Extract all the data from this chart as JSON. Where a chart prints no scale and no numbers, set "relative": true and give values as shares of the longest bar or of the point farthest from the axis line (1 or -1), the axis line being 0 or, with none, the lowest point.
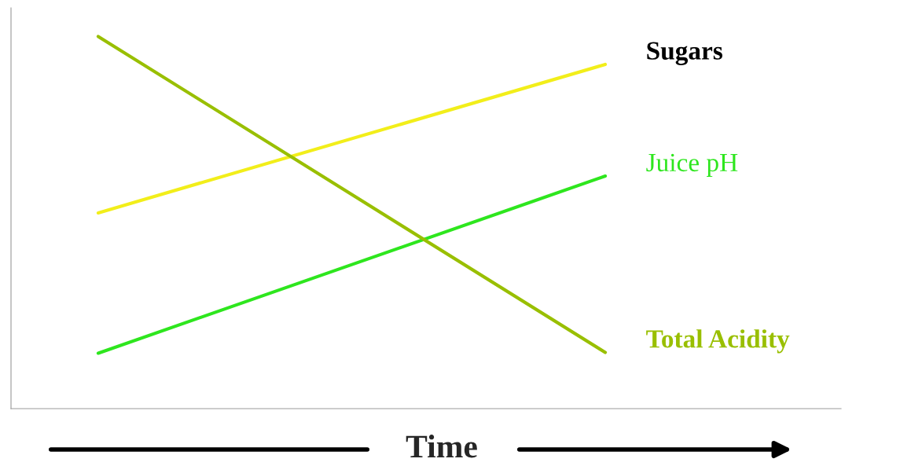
{
  "chart_data": {
    "type": "line",
    "relative": true,
    "categories": [
      null,
      null
    ],
    "xlabel": "Time",
    "legend": false,
    "series": [
      {
        "name": "Sugars",
        "color": "#f2ee1a",
        "values": [
          0.526,
          0.925
        ]
      },
      {
        "name": "Juice pH",
        "color": "#2ee61e",
        "values": [
          0.149,
          0.625
        ]
      },
      {
        "name": "Total Acidity",
        "color": "#99bf00",
        "values": [
          1,
          0.151
        ]
      }
    ]
  }
}
